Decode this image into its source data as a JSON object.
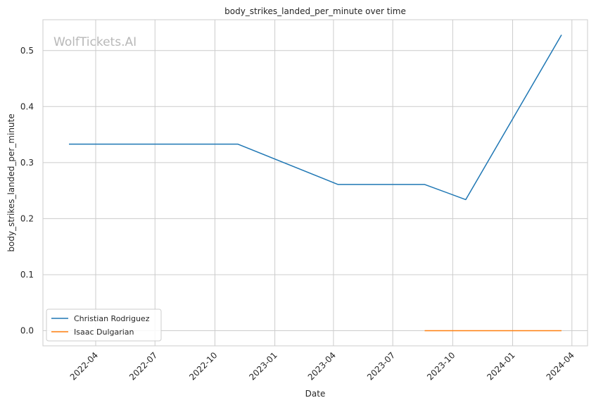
{
  "chart_data": {
    "type": "line",
    "title": "body_strikes_landed_per_minute over time",
    "xlabel": "Date",
    "ylabel": "body_strikes_landed_per_minute",
    "watermark": "WolfTickets.AI",
    "x_ticks": [
      "2022-04",
      "2022-07",
      "2022-10",
      "2023-01",
      "2023-04",
      "2023-07",
      "2023-10",
      "2024-01",
      "2024-04"
    ],
    "y_ticks": [
      "0.0",
      "0.1",
      "0.2",
      "0.3",
      "0.4",
      "0.5"
    ],
    "xlim": [
      "2022-01-10",
      "2024-04-25"
    ],
    "ylim": [
      -0.027,
      0.555
    ],
    "grid": true,
    "legend_position": "lower-left",
    "series": [
      {
        "name": "Christian Rodriguez",
        "color": "#1f77b4",
        "points": [
          {
            "x": "2022-02-19",
            "y": 0.333
          },
          {
            "x": "2022-11-05",
            "y": 0.333
          },
          {
            "x": "2023-04-08",
            "y": 0.261
          },
          {
            "x": "2023-08-19",
            "y": 0.261
          },
          {
            "x": "2023-10-21",
            "y": 0.234
          },
          {
            "x": "2024-03-16",
            "y": 0.528
          }
        ]
      },
      {
        "name": "Isaac Dulgarian",
        "color": "#ff7f0e",
        "points": [
          {
            "x": "2023-08-19",
            "y": 0.0
          },
          {
            "x": "2024-03-16",
            "y": 0.0
          }
        ]
      }
    ]
  }
}
